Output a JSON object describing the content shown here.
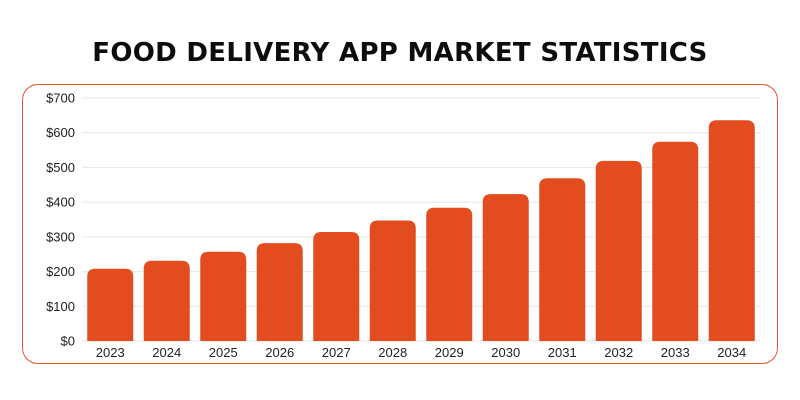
{
  "chart_data": {
    "type": "bar",
    "title": "FOOD DELIVERY APP MARKET STATISTICS",
    "categories": [
      "2023",
      "2024",
      "2025",
      "2026",
      "2027",
      "2028",
      "2029",
      "2030",
      "2031",
      "2032",
      "2033",
      "2034"
    ],
    "values": [
      208,
      231,
      257,
      282,
      314,
      347,
      384,
      423,
      469,
      519,
      574,
      636
    ],
    "ylim": [
      0,
      700
    ],
    "yticks": [
      0,
      100,
      200,
      300,
      400,
      500,
      600,
      700
    ],
    "ytick_labels": [
      "$0",
      "$100",
      "$200",
      "$300",
      "$400",
      "$500",
      "$600",
      "$700"
    ],
    "xlabel": "",
    "ylabel": "",
    "grid": true,
    "bar_color": "#e34c1e",
    "grid_color": "#e6e6e6",
    "frame_color": "#e2542a"
  }
}
